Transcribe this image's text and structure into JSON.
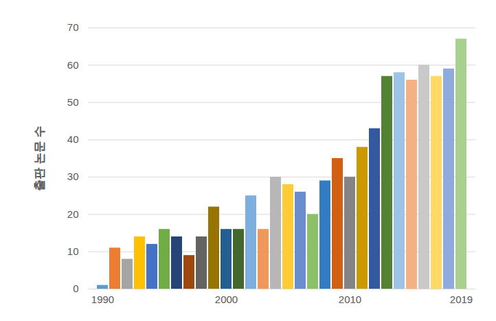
{
  "chart_data": {
    "type": "bar",
    "y_label": "출판 논문 수",
    "categories": [
      "1990",
      null,
      null,
      null,
      null,
      null,
      null,
      null,
      null,
      null,
      "2000",
      null,
      null,
      null,
      null,
      null,
      null,
      null,
      null,
      null,
      "2010",
      null,
      null,
      null,
      null,
      null,
      null,
      null,
      null,
      "2019"
    ],
    "values": [
      1,
      11,
      8,
      14,
      12,
      16,
      14,
      9,
      14,
      22,
      16,
      16,
      25,
      16,
      30,
      28,
      26,
      20,
      29,
      35,
      30,
      38,
      43,
      57,
      58,
      56,
      60,
      57,
      59,
      67
    ],
    "colors": [
      "#5b9bd5",
      "#ed7d31",
      "#a5a5a5",
      "#ffc000",
      "#4472c4",
      "#70ad47",
      "#264478",
      "#9e480e",
      "#636363",
      "#997300",
      "#255e91",
      "#43682b",
      "#7cafdd",
      "#f1975a",
      "#b7b7b7",
      "#ffcd33",
      "#698ed0",
      "#8cc168",
      "#327dc2",
      "#d26012",
      "#848484",
      "#cc9a00",
      "#335aa1",
      "#548235",
      "#9dc3e6",
      "#f4b183",
      "#c9c9c9",
      "#ffd966",
      "#8faadc",
      "#a9d18e"
    ],
    "ylim": [
      0,
      70
    ],
    "yticks": [
      0,
      10,
      20,
      30,
      40,
      50,
      60,
      70
    ],
    "grid": true
  }
}
